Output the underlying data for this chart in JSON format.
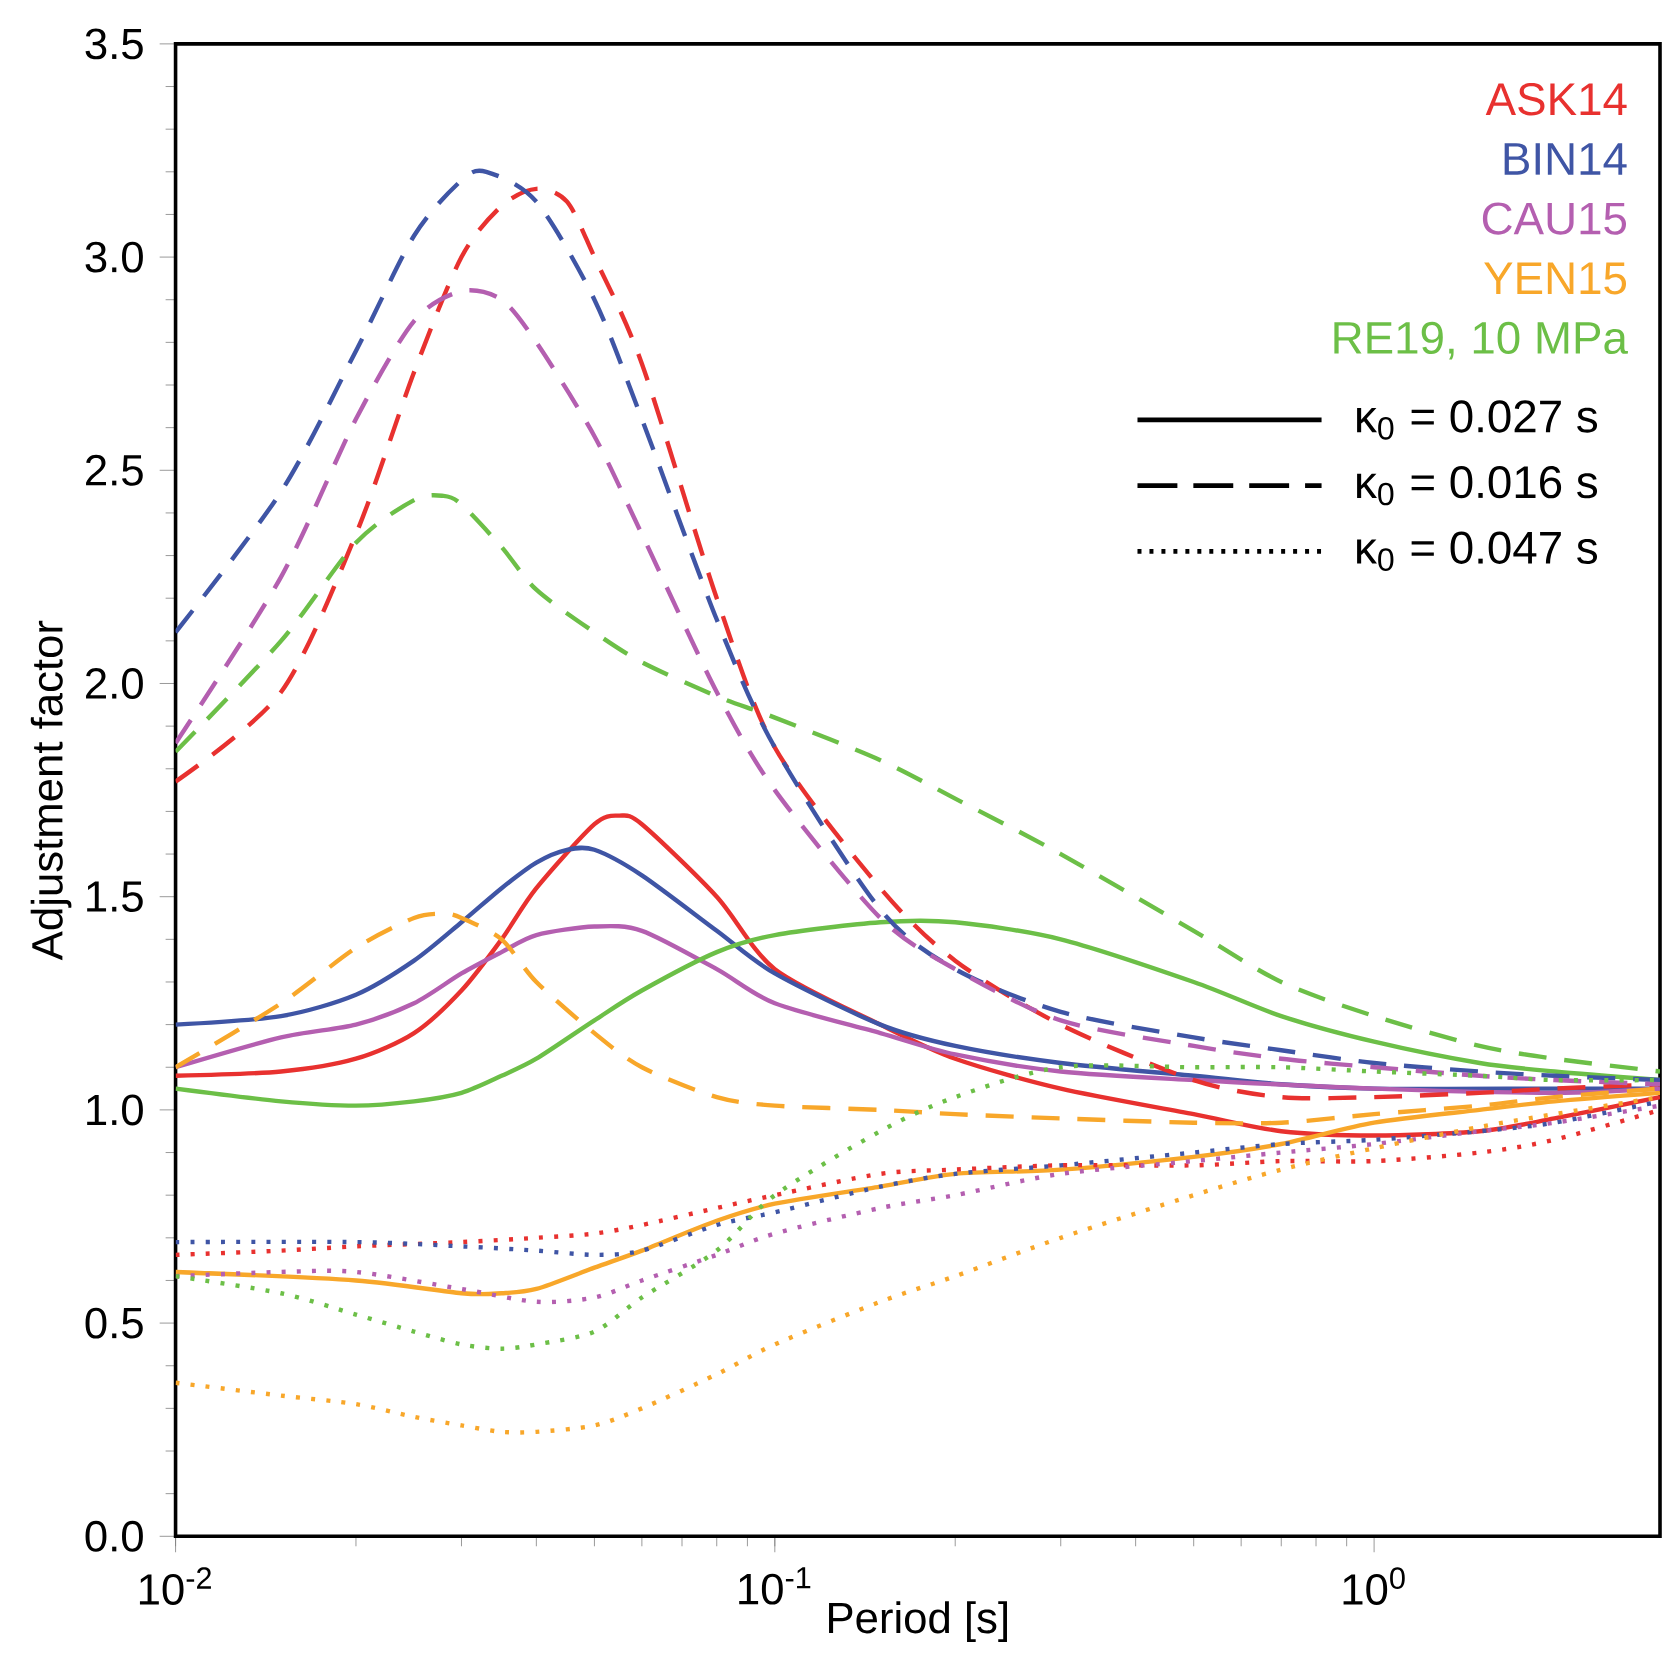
{
  "chart_data": {
    "type": "line",
    "xlabel": "Period [s]",
    "ylabel": "Adjustment factor",
    "log": "x",
    "legend": "top right",
    "xlim": [
      0.01,
      3
    ],
    "ylim": [
      0,
      3.5
    ],
    "xticks": [
      {
        "value": 0.01,
        "label": "10$^{-2}$"
      },
      {
        "value": 0.1,
        "label": "10$^{-1}$"
      },
      {
        "value": 1,
        "label": "10$^{0}$"
      }
    ],
    "yticks": [
      {
        "value": 0,
        "label": "0.0"
      },
      {
        "value": 0.5,
        "label": "0.5"
      },
      {
        "value": 1,
        "label": "1.0"
      },
      {
        "value": 1.5,
        "label": "1.5"
      },
      {
        "value": 2,
        "label": "2.0"
      },
      {
        "value": 2.5,
        "label": "2.5"
      },
      {
        "value": 3,
        "label": "3.0"
      },
      {
        "value": 3.5,
        "label": "3.5"
      }
    ],
    "series": [
      {
        "name": "ASK14",
        "color": "#e8312f",
        "line_style": "solid",
        "x": [
          0.01,
          0.015,
          0.02,
          0.025,
          0.03,
          0.035,
          0.04,
          0.05,
          0.055,
          0.06,
          0.08,
          0.1,
          0.15,
          0.2,
          0.3,
          0.5,
          0.7,
          1,
          1.5,
          2,
          3
        ],
        "values": [
          1.08,
          1.09,
          1.12,
          1.18,
          1.28,
          1.4,
          1.52,
          1.67,
          1.69,
          1.67,
          1.5,
          1.33,
          1.2,
          1.12,
          1.05,
          0.99,
          0.95,
          0.94,
          0.95,
          0.98,
          1.03
        ]
      },
      {
        "name": "BIN14",
        "color": "#3f55a5",
        "line_style": "solid",
        "x": [
          0.01,
          0.015,
          0.02,
          0.025,
          0.03,
          0.035,
          0.04,
          0.045,
          0.05,
          0.06,
          0.08,
          0.1,
          0.15,
          0.2,
          0.3,
          0.5,
          0.7,
          1,
          2,
          3
        ],
        "values": [
          1.2,
          1.22,
          1.27,
          1.35,
          1.44,
          1.52,
          1.58,
          1.61,
          1.61,
          1.55,
          1.42,
          1.32,
          1.2,
          1.15,
          1.11,
          1.08,
          1.06,
          1.05,
          1.05,
          1.05
        ]
      },
      {
        "name": "CAU15",
        "color": "#b45fb0",
        "line_style": "solid",
        "x": [
          0.01,
          0.015,
          0.02,
          0.025,
          0.03,
          0.035,
          0.04,
          0.05,
          0.06,
          0.08,
          0.1,
          0.15,
          0.2,
          0.3,
          0.5,
          1,
          2,
          3
        ],
        "values": [
          1.1,
          1.17,
          1.2,
          1.25,
          1.32,
          1.37,
          1.41,
          1.43,
          1.42,
          1.33,
          1.25,
          1.18,
          1.13,
          1.09,
          1.07,
          1.05,
          1.04,
          1.05
        ]
      },
      {
        "name": "YEN15",
        "color": "#f8a72a",
        "line_style": "solid",
        "x": [
          0.01,
          0.02,
          0.03,
          0.035,
          0.04,
          0.05,
          0.06,
          0.08,
          0.1,
          0.15,
          0.2,
          0.3,
          0.5,
          0.7,
          1,
          1.5,
          2,
          3
        ],
        "values": [
          0.62,
          0.6,
          0.57,
          0.57,
          0.58,
          0.63,
          0.67,
          0.74,
          0.78,
          0.82,
          0.85,
          0.86,
          0.89,
          0.92,
          0.97,
          1.0,
          1.02,
          1.04
        ]
      },
      {
        "name": "RE19, 10 MPa",
        "color": "#6cbf47",
        "line_style": "solid",
        "x": [
          0.01,
          0.015,
          0.02,
          0.025,
          0.03,
          0.035,
          0.04,
          0.05,
          0.06,
          0.08,
          0.1,
          0.15,
          0.2,
          0.3,
          0.5,
          0.7,
          1,
          1.5,
          2,
          3
        ],
        "values": [
          1.05,
          1.02,
          1.01,
          1.02,
          1.04,
          1.08,
          1.12,
          1.21,
          1.28,
          1.37,
          1.41,
          1.44,
          1.44,
          1.4,
          1.3,
          1.22,
          1.16,
          1.11,
          1.09,
          1.07
        ]
      },
      {
        "color": "#e8312f",
        "line_style": "dashed",
        "x": [
          0.01,
          0.015,
          0.02,
          0.025,
          0.03,
          0.035,
          0.04,
          0.045,
          0.05,
          0.06,
          0.08,
          0.1,
          0.15,
          0.2,
          0.3,
          0.5,
          0.7,
          1,
          1.5,
          2,
          3
        ],
        "values": [
          1.77,
          1.98,
          2.35,
          2.73,
          3.0,
          3.12,
          3.16,
          3.13,
          3.0,
          2.75,
          2.2,
          1.85,
          1.52,
          1.35,
          1.2,
          1.07,
          1.03,
          1.03,
          1.04,
          1.05,
          1.06
        ]
      },
      {
        "color": "#3f55a5",
        "line_style": "dashed",
        "x": [
          0.01,
          0.015,
          0.02,
          0.025,
          0.03,
          0.033,
          0.04,
          0.05,
          0.06,
          0.08,
          0.1,
          0.15,
          0.2,
          0.3,
          0.5,
          0.7,
          1,
          1.5,
          2,
          3
        ],
        "values": [
          2.12,
          2.45,
          2.78,
          3.05,
          3.18,
          3.2,
          3.13,
          2.9,
          2.62,
          2.15,
          1.85,
          1.47,
          1.33,
          1.23,
          1.17,
          1.14,
          1.11,
          1.09,
          1.08,
          1.07
        ]
      },
      {
        "color": "#b45fb0",
        "line_style": "dashed",
        "x": [
          0.01,
          0.015,
          0.02,
          0.025,
          0.03,
          0.035,
          0.04,
          0.05,
          0.06,
          0.08,
          0.1,
          0.15,
          0.2,
          0.3,
          0.5,
          0.7,
          1,
          1.5,
          2,
          3
        ],
        "values": [
          1.86,
          2.25,
          2.62,
          2.85,
          2.92,
          2.9,
          2.8,
          2.58,
          2.35,
          1.98,
          1.75,
          1.45,
          1.33,
          1.21,
          1.15,
          1.12,
          1.1,
          1.08,
          1.07,
          1.06
        ]
      },
      {
        "color": "#f8a72a",
        "line_style": "dashed",
        "x": [
          0.01,
          0.015,
          0.02,
          0.025,
          0.028,
          0.03,
          0.035,
          0.04,
          0.05,
          0.06,
          0.08,
          0.1,
          0.15,
          0.2,
          0.3,
          0.5,
          0.7,
          1,
          1.5,
          2,
          3
        ],
        "values": [
          1.1,
          1.25,
          1.38,
          1.45,
          1.46,
          1.45,
          1.4,
          1.3,
          1.18,
          1.1,
          1.03,
          1.01,
          1.0,
          0.99,
          0.98,
          0.97,
          0.97,
          0.99,
          1.01,
          1.03,
          1.05
        ]
      },
      {
        "color": "#6cbf47",
        "line_style": "dashed",
        "x": [
          0.01,
          0.015,
          0.02,
          0.025,
          0.028,
          0.03,
          0.035,
          0.04,
          0.05,
          0.06,
          0.08,
          0.1,
          0.15,
          0.2,
          0.3,
          0.5,
          0.7,
          1,
          1.5,
          2,
          3
        ],
        "values": [
          1.84,
          2.1,
          2.33,
          2.43,
          2.44,
          2.42,
          2.32,
          2.22,
          2.12,
          2.05,
          1.97,
          1.92,
          1.82,
          1.73,
          1.6,
          1.42,
          1.3,
          1.22,
          1.15,
          1.12,
          1.09
        ]
      },
      {
        "color": "#e8312f",
        "line_style": "dotted",
        "x": [
          0.01,
          0.015,
          0.02,
          0.03,
          0.04,
          0.05,
          0.06,
          0.08,
          0.1,
          0.15,
          0.2,
          0.3,
          0.5,
          0.7,
          1,
          1.5,
          2,
          3
        ],
        "values": [
          0.66,
          0.67,
          0.68,
          0.69,
          0.7,
          0.71,
          0.73,
          0.77,
          0.8,
          0.85,
          0.86,
          0.87,
          0.87,
          0.88,
          0.88,
          0.9,
          0.93,
          1.0
        ]
      },
      {
        "color": "#3f55a5",
        "line_style": "dotted",
        "x": [
          0.01,
          0.02,
          0.03,
          0.04,
          0.05,
          0.06,
          0.08,
          0.1,
          0.15,
          0.2,
          0.3,
          0.5,
          0.7,
          1,
          1.5,
          2,
          3
        ],
        "values": [
          0.69,
          0.69,
          0.68,
          0.67,
          0.66,
          0.67,
          0.73,
          0.76,
          0.82,
          0.85,
          0.87,
          0.9,
          0.92,
          0.93,
          0.95,
          0.97,
          1.02
        ]
      },
      {
        "color": "#b45fb0",
        "line_style": "dotted",
        "x": [
          0.01,
          0.015,
          0.02,
          0.03,
          0.04,
          0.05,
          0.06,
          0.08,
          0.1,
          0.15,
          0.2,
          0.3,
          0.5,
          0.7,
          1,
          1.5,
          2,
          3
        ],
        "values": [
          0.61,
          0.62,
          0.62,
          0.58,
          0.55,
          0.56,
          0.6,
          0.66,
          0.71,
          0.77,
          0.8,
          0.85,
          0.88,
          0.9,
          0.92,
          0.95,
          0.97,
          1.01
        ]
      },
      {
        "color": "#f8a72a",
        "line_style": "dotted",
        "x": [
          0.01,
          0.015,
          0.02,
          0.025,
          0.03,
          0.035,
          0.04,
          0.05,
          0.06,
          0.08,
          0.1,
          0.15,
          0.2,
          0.3,
          0.5,
          0.7,
          1,
          1.5,
          2,
          3
        ],
        "values": [
          0.36,
          0.33,
          0.31,
          0.28,
          0.26,
          0.245,
          0.245,
          0.26,
          0.3,
          0.38,
          0.45,
          0.55,
          0.61,
          0.7,
          0.8,
          0.86,
          0.91,
          0.96,
          0.99,
          1.03
        ]
      },
      {
        "color": "#6cbf47",
        "line_style": "dotted",
        "x": [
          0.01,
          0.015,
          0.02,
          0.025,
          0.03,
          0.035,
          0.04,
          0.05,
          0.06,
          0.08,
          0.1,
          0.15,
          0.2,
          0.3,
          0.5,
          0.7,
          1,
          1.5,
          2,
          3
        ],
        "values": [
          0.61,
          0.57,
          0.52,
          0.48,
          0.45,
          0.44,
          0.45,
          0.48,
          0.56,
          0.67,
          0.8,
          0.95,
          1.03,
          1.1,
          1.1,
          1.1,
          1.09,
          1.08,
          1.07,
          1.07
        ]
      }
    ],
    "annotations": [
      "κ$_{0}$ = 0.027 s",
      "κ$_{0}$ = 0.016 s",
      "κ$_{0}$ = 0.047 s"
    ]
  }
}
